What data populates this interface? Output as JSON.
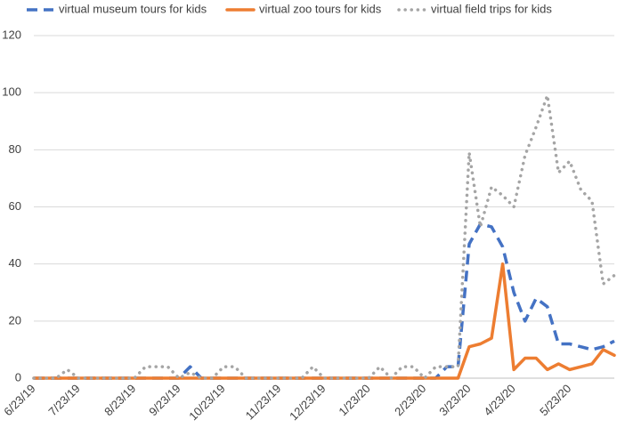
{
  "chart_data": {
    "type": "line",
    "categories": [
      "6/23/19",
      null,
      null,
      null,
      "7/23/19",
      null,
      null,
      null,
      null,
      "8/23/19",
      null,
      null,
      null,
      "9/23/19",
      null,
      null,
      null,
      "10/23/19",
      null,
      null,
      null,
      null,
      "11/23/19",
      null,
      null,
      null,
      "12/23/19",
      null,
      null,
      null,
      "1/23/20",
      null,
      null,
      null,
      null,
      "2/23/20",
      null,
      null,
      null,
      "3/23/20",
      null,
      null,
      null,
      "4/23/20",
      null,
      null,
      null,
      null,
      "5/23/20",
      null,
      null,
      null,
      null
    ],
    "series": [
      {
        "name": "virtual museum tours for kids",
        "color": "#4472c4",
        "style": "dashed",
        "values": [
          0,
          0,
          0,
          0,
          0,
          0,
          0,
          0,
          0,
          0,
          0,
          0,
          0,
          0,
          4,
          0,
          0,
          0,
          0,
          0,
          0,
          0,
          0,
          0,
          0,
          0,
          0,
          0,
          0,
          0,
          0,
          0,
          0,
          0,
          0,
          0,
          0,
          4,
          4,
          47,
          54,
          53,
          46,
          30,
          20,
          28,
          25,
          12,
          12,
          11,
          10,
          11,
          13
        ]
      },
      {
        "name": "virtual zoo tours for kids",
        "color": "#ed7d31",
        "style": "solid",
        "values": [
          0,
          0,
          0,
          0,
          0,
          0,
          0,
          0,
          0,
          0,
          0,
          0,
          0,
          0,
          0,
          0,
          0,
          0,
          0,
          0,
          0,
          0,
          0,
          0,
          0,
          0,
          0,
          0,
          0,
          0,
          0,
          0,
          0,
          0,
          0,
          0,
          0,
          0,
          0,
          11,
          12,
          14,
          40,
          3,
          7,
          7,
          3,
          5,
          3,
          4,
          5,
          10,
          8
        ]
      },
      {
        "name": "virtual field trips for kids",
        "color": "#a5a5a5",
        "style": "dotted",
        "values": [
          0,
          0,
          0,
          3,
          0,
          0,
          0,
          0,
          0,
          0,
          4,
          4,
          4,
          0,
          2,
          0,
          0,
          4,
          4,
          0,
          0,
          0,
          0,
          0,
          0,
          4,
          0,
          0,
          0,
          0,
          0,
          4,
          0,
          4,
          4,
          0,
          4,
          4,
          4,
          79,
          53,
          67,
          64,
          60,
          78,
          88,
          99,
          72,
          76,
          66,
          62,
          33,
          36
        ]
      }
    ],
    "ylim": [
      0,
      120
    ],
    "yticks": [
      0,
      20,
      40,
      60,
      80,
      100,
      120
    ],
    "grid": true,
    "legend": "top"
  }
}
